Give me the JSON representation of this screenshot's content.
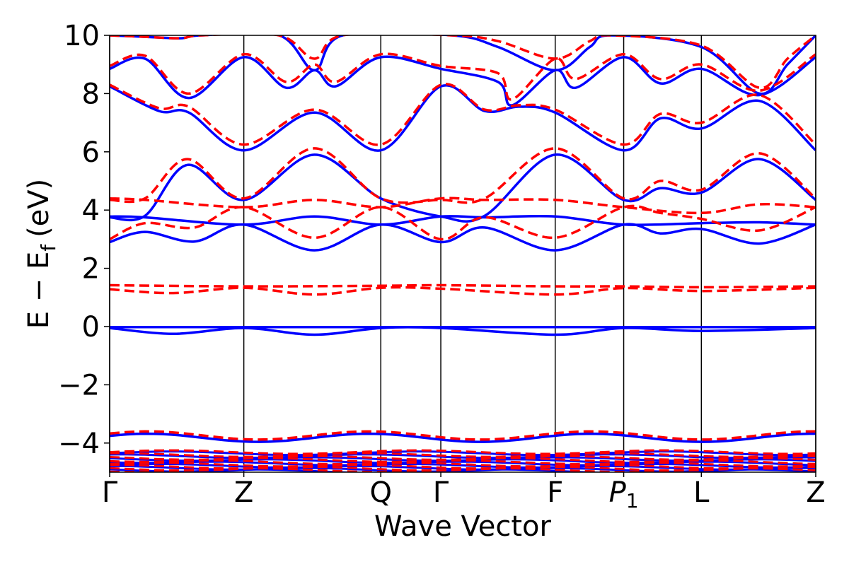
{
  "chart_data": {
    "type": "line",
    "title": "",
    "xlabel": "Wave Vector",
    "ylabel": "E − E_f (eV)",
    "ylabel_parts": {
      "main": "E − E",
      "sub": "f",
      "unit": "(eV)"
    },
    "ylim": [
      -5,
      10
    ],
    "yticks": [
      -4,
      -2,
      0,
      2,
      4,
      6,
      8,
      10
    ],
    "ytick_labels": [
      "−4",
      "−2",
      "0",
      "2",
      "4",
      "6",
      "8",
      "10"
    ],
    "xlim": [
      0,
      1
    ],
    "kpoints": [
      {
        "label": "Γ",
        "x": 0.0
      },
      {
        "label": "Z",
        "x": 0.19
      },
      {
        "label": "Q",
        "x": 0.384
      },
      {
        "label": "Γ",
        "x": 0.469
      },
      {
        "label": "F",
        "x": 0.631
      },
      {
        "label": "P",
        "sub": "1",
        "italic": true,
        "x": 0.728
      },
      {
        "label": "L",
        "x": 0.838
      },
      {
        "label": "Z",
        "x": 1.0
      }
    ],
    "grid": false,
    "legend": "none",
    "colors": {
      "series_a": "#0000ff",
      "series_b": "#ff0000",
      "axes": "#000000"
    },
    "series": [
      {
        "style": "solid",
        "color": "#0000ff",
        "bands": [
          [
            [
              0,
              -0.02
            ],
            [
              0.19,
              -0.02
            ],
            [
              0.384,
              -0.02
            ],
            [
              0.469,
              -0.02
            ],
            [
              0.631,
              -0.02
            ],
            [
              0.728,
              -0.02
            ],
            [
              0.838,
              -0.02
            ],
            [
              1,
              -0.02
            ]
          ],
          [
            [
              0,
              -0.05
            ],
            [
              0.09,
              -0.25
            ],
            [
              0.19,
              -0.05
            ],
            [
              0.29,
              -0.28
            ],
            [
              0.384,
              -0.05
            ],
            [
              0.469,
              -0.05
            ],
            [
              0.631,
              -0.28
            ],
            [
              0.728,
              -0.05
            ],
            [
              0.838,
              -0.15
            ],
            [
              1,
              -0.05
            ]
          ],
          [
            [
              0,
              3.78
            ],
            [
              0.05,
              3.75
            ],
            [
              0.19,
              3.5
            ],
            [
              0.29,
              3.78
            ],
            [
              0.384,
              3.5
            ],
            [
              0.469,
              3.78
            ],
            [
              0.531,
              3.75
            ],
            [
              0.631,
              3.78
            ],
            [
              0.728,
              3.5
            ],
            [
              0.838,
              3.55
            ],
            [
              0.92,
              3.58
            ],
            [
              1,
              3.5
            ]
          ],
          [
            [
              0,
              2.9
            ],
            [
              0.05,
              3.25
            ],
            [
              0.12,
              2.92
            ],
            [
              0.19,
              3.5
            ],
            [
              0.29,
              2.62
            ],
            [
              0.384,
              3.5
            ],
            [
              0.469,
              2.9
            ],
            [
              0.531,
              3.4
            ],
            [
              0.631,
              2.62
            ],
            [
              0.728,
              3.5
            ],
            [
              0.78,
              3.2
            ],
            [
              0.838,
              3.35
            ],
            [
              0.92,
              2.85
            ],
            [
              1,
              3.5
            ]
          ],
          [
            [
              0,
              3.75
            ],
            [
              0.05,
              3.8
            ],
            [
              0.11,
              5.55
            ],
            [
              0.19,
              4.35
            ],
            [
              0.29,
              5.9
            ],
            [
              0.384,
              4.4
            ],
            [
              0.469,
              3.78
            ],
            [
              0.531,
              3.8
            ],
            [
              0.631,
              5.9
            ],
            [
              0.728,
              4.35
            ],
            [
              0.78,
              4.75
            ],
            [
              0.838,
              4.6
            ],
            [
              0.92,
              5.75
            ],
            [
              1,
              4.35
            ]
          ],
          [
            [
              0,
              8.25
            ],
            [
              0.07,
              7.4
            ],
            [
              0.112,
              7.35
            ],
            [
              0.19,
              6.05
            ],
            [
              0.29,
              7.35
            ],
            [
              0.384,
              6.05
            ],
            [
              0.469,
              8.25
            ],
            [
              0.531,
              7.4
            ],
            [
              0.58,
              7.55
            ],
            [
              0.631,
              7.35
            ],
            [
              0.728,
              6.05
            ],
            [
              0.78,
              7.15
            ],
            [
              0.838,
              6.8
            ],
            [
              0.92,
              7.75
            ],
            [
              1,
              6.05
            ]
          ],
          [
            [
              0,
              8.85
            ],
            [
              0.05,
              9.2
            ],
            [
              0.112,
              7.85
            ],
            [
              0.19,
              9.25
            ],
            [
              0.25,
              8.2
            ],
            [
              0.29,
              8.8
            ],
            [
              0.32,
              8.25
            ],
            [
              0.384,
              9.25
            ],
            [
              0.469,
              8.85
            ],
            [
              0.55,
              8.4
            ],
            [
              0.57,
              7.6
            ],
            [
              0.631,
              8.8
            ],
            [
              0.66,
              8.2
            ],
            [
              0.728,
              9.25
            ],
            [
              0.78,
              8.35
            ],
            [
              0.838,
              8.85
            ],
            [
              0.92,
              7.95
            ],
            [
              1,
              9.25
            ]
          ],
          [
            [
              0,
              10
            ],
            [
              0.05,
              9.95
            ],
            [
              0.1,
              9.9
            ],
            [
              0.13,
              10
            ],
            [
              0.24,
              10
            ],
            [
              0.29,
              8.8
            ],
            [
              0.33,
              10
            ],
            [
              0.485,
              10
            ],
            [
              0.55,
              9.6
            ],
            [
              0.631,
              8.8
            ],
            [
              0.68,
              9.6
            ],
            [
              0.71,
              10
            ],
            [
              0.838,
              9.6
            ],
            [
              0.92,
              8.0
            ],
            [
              0.96,
              9.0
            ],
            [
              1,
              10
            ]
          ]
        ]
      },
      {
        "style": "dashed",
        "color": "#ff0000",
        "bands": [
          [
            [
              0,
              1.42
            ],
            [
              0.19,
              1.38
            ],
            [
              0.384,
              1.4
            ],
            [
              0.469,
              1.42
            ],
            [
              0.631,
              1.38
            ],
            [
              0.728,
              1.38
            ],
            [
              0.838,
              1.35
            ],
            [
              1,
              1.38
            ]
          ],
          [
            [
              0,
              1.28
            ],
            [
              0.09,
              1.15
            ],
            [
              0.19,
              1.33
            ],
            [
              0.29,
              1.1
            ],
            [
              0.384,
              1.33
            ],
            [
              0.469,
              1.3
            ],
            [
              0.631,
              1.1
            ],
            [
              0.728,
              1.32
            ],
            [
              0.838,
              1.22
            ],
            [
              1,
              1.33
            ]
          ],
          [
            [
              0,
              4.4
            ],
            [
              0.05,
              4.35
            ],
            [
              0.19,
              4.1
            ],
            [
              0.29,
              4.35
            ],
            [
              0.384,
              4.1
            ],
            [
              0.469,
              4.4
            ],
            [
              0.531,
              4.35
            ],
            [
              0.631,
              4.35
            ],
            [
              0.728,
              4.1
            ],
            [
              0.838,
              3.9
            ],
            [
              0.92,
              4.2
            ],
            [
              1,
              4.1
            ]
          ],
          [
            [
              0,
              3.0
            ],
            [
              0.05,
              3.55
            ],
            [
              0.12,
              3.4
            ],
            [
              0.19,
              4.1
            ],
            [
              0.29,
              3.05
            ],
            [
              0.384,
              4.1
            ],
            [
              0.469,
              3.0
            ],
            [
              0.531,
              3.75
            ],
            [
              0.631,
              3.05
            ],
            [
              0.728,
              4.1
            ],
            [
              0.78,
              3.9
            ],
            [
              0.838,
              3.7
            ],
            [
              0.92,
              3.3
            ],
            [
              1,
              4.1
            ]
          ],
          [
            [
              0,
              4.35
            ],
            [
              0.05,
              4.4
            ],
            [
              0.11,
              5.75
            ],
            [
              0.19,
              4.4
            ],
            [
              0.29,
              6.12
            ],
            [
              0.384,
              4.4
            ],
            [
              0.469,
              4.35
            ],
            [
              0.531,
              4.4
            ],
            [
              0.631,
              6.12
            ],
            [
              0.728,
              4.4
            ],
            [
              0.78,
              5.0
            ],
            [
              0.838,
              4.7
            ],
            [
              0.92,
              5.95
            ],
            [
              1,
              4.4
            ]
          ],
          [
            [
              0,
              8.3
            ],
            [
              0.07,
              7.5
            ],
            [
              0.112,
              7.55
            ],
            [
              0.19,
              6.25
            ],
            [
              0.29,
              7.45
            ],
            [
              0.384,
              6.25
            ],
            [
              0.469,
              8.3
            ],
            [
              0.531,
              7.45
            ],
            [
              0.58,
              7.6
            ],
            [
              0.631,
              7.45
            ],
            [
              0.728,
              6.25
            ],
            [
              0.78,
              7.3
            ],
            [
              0.838,
              7.0
            ],
            [
              0.92,
              7.95
            ],
            [
              1,
              6.25
            ]
          ],
          [
            [
              0,
              8.95
            ],
            [
              0.05,
              9.3
            ],
            [
              0.112,
              8.0
            ],
            [
              0.19,
              9.35
            ],
            [
              0.25,
              8.4
            ],
            [
              0.29,
              9.0
            ],
            [
              0.32,
              8.4
            ],
            [
              0.384,
              9.35
            ],
            [
              0.469,
              8.95
            ],
            [
              0.55,
              8.7
            ],
            [
              0.57,
              7.8
            ],
            [
              0.631,
              9.2
            ],
            [
              0.66,
              8.5
            ],
            [
              0.728,
              9.35
            ],
            [
              0.78,
              8.5
            ],
            [
              0.838,
              9.0
            ],
            [
              0.92,
              8.1
            ],
            [
              1,
              9.35
            ]
          ],
          [
            [
              0,
              10
            ],
            [
              0.05,
              9.95
            ],
            [
              0.1,
              9.9
            ],
            [
              0.13,
              10
            ],
            [
              0.24,
              10
            ],
            [
              0.29,
              9.2
            ],
            [
              0.33,
              10
            ],
            [
              0.485,
              10
            ],
            [
              0.55,
              9.8
            ],
            [
              0.631,
              9.2
            ],
            [
              0.68,
              9.8
            ],
            [
              0.71,
              10
            ],
            [
              0.838,
              9.65
            ],
            [
              0.92,
              8.2
            ],
            [
              0.96,
              9.2
            ],
            [
              1,
              10
            ]
          ]
        ]
      }
    ]
  }
}
